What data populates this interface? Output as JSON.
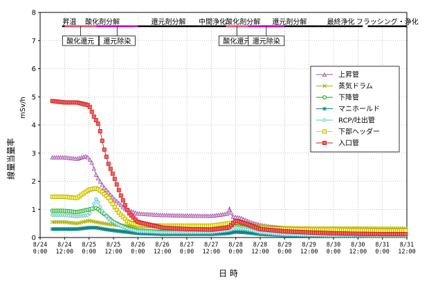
{
  "chart_data": {
    "type": "line",
    "xlabel": "日 時",
    "ylabel": "線量当量率",
    "unit": "mSv/h",
    "ylim": [
      0,
      8
    ],
    "yticks": [
      "0",
      "1",
      "2",
      "3",
      "4",
      "5",
      "6",
      "7",
      "8"
    ],
    "xlim": [
      0,
      15
    ],
    "xticks": [
      {
        "line1": "8/24",
        "line2": "0:00"
      },
      {
        "line1": "8/24",
        "line2": "12:00"
      },
      {
        "line1": "8/25",
        "line2": "0:00"
      },
      {
        "line1": "8/25",
        "line2": "12:00"
      },
      {
        "line1": "8/26",
        "line2": "0:00"
      },
      {
        "line1": "8/26",
        "line2": "12:00"
      },
      {
        "line1": "8/27",
        "line2": "0:00"
      },
      {
        "line1": "8/27",
        "line2": "12:00"
      },
      {
        "line1": "8/28",
        "line2": "0:00"
      },
      {
        "line1": "8/28",
        "line2": "12:00"
      },
      {
        "line1": "8/29",
        "line2": "0:00"
      },
      {
        "line1": "8/29",
        "line2": "12:00"
      },
      {
        "line1": "8/30",
        "line2": "0:00"
      },
      {
        "line1": "8/30",
        "line2": "12:00"
      },
      {
        "line1": "8/31",
        "line2": "0:00"
      },
      {
        "line1": "8/31",
        "line2": "12:00"
      }
    ],
    "phases": [
      {
        "label": "昇温",
        "start": 0.9,
        "end": 1.5,
        "color": "#000000"
      },
      {
        "label": "酸化剤分解",
        "start": 1.5,
        "end": 3.6,
        "color": "#e05070"
      },
      {
        "label": "還元剤分解",
        "start": 4.0,
        "end": 6.5,
        "color": "#000000"
      },
      {
        "label": "中間浄化",
        "start": 6.5,
        "end": 7.6,
        "color": "#000000"
      },
      {
        "label": "酸化剤分解",
        "start": 7.6,
        "end": 9.0,
        "color": "#e05070"
      },
      {
        "label": "還元剤分解",
        "start": 9.0,
        "end": 11.4,
        "color": "#000000"
      },
      {
        "label": "最終浄化",
        "start": 11.4,
        "end": 13.2,
        "color": "#000000"
      },
      {
        "label": "フラッシング・浄化",
        "start": 13.4,
        "end": 15.3,
        "color": "#000000"
      }
    ],
    "sub_phases": [
      {
        "label": "酸化還元",
        "start": 1.0,
        "end": 2.3,
        "bar_color": "#e05070"
      },
      {
        "label": "還元除染",
        "start": 2.3,
        "end": 4.0,
        "bar_color": "#c000c0"
      },
      {
        "label": "酸化還元",
        "start": 7.6,
        "end": 8.5,
        "bar_color": "#e05070"
      },
      {
        "label": "還元除染",
        "start": 8.5,
        "end": 10.0,
        "bar_color": "#c000c0"
      }
    ],
    "legend_position": "right",
    "series": [
      {
        "name": "上昇管",
        "color": "#a050a0",
        "marker": "triangle",
        "points": [
          [
            0.5,
            2.85
          ],
          [
            1,
            2.85
          ],
          [
            1.5,
            2.8
          ],
          [
            1.9,
            2.9
          ],
          [
            2.1,
            2.7
          ],
          [
            2.3,
            2.2
          ],
          [
            2.6,
            1.8
          ],
          [
            3,
            1.4
          ],
          [
            3.5,
            1.0
          ],
          [
            4,
            0.85
          ],
          [
            5,
            0.8
          ],
          [
            6,
            0.78
          ],
          [
            7,
            0.77
          ],
          [
            7.7,
            0.85
          ],
          [
            7.75,
            1.1
          ],
          [
            7.85,
            0.75
          ],
          [
            8.2,
            0.7
          ],
          [
            8.6,
            0.55
          ],
          [
            9,
            0.45
          ],
          [
            10,
            0.3
          ],
          [
            11,
            0.25
          ],
          [
            12,
            0.2
          ],
          [
            13,
            0.15
          ],
          [
            14,
            0.1
          ],
          [
            15,
            0.1
          ]
        ]
      },
      {
        "name": "蒸気ドラム",
        "color": "#b0b000",
        "marker": "x",
        "points": [
          [
            0.5,
            0.55
          ],
          [
            1,
            0.55
          ],
          [
            1.5,
            0.5
          ],
          [
            2,
            0.6
          ],
          [
            2.3,
            0.55
          ],
          [
            2.6,
            0.5
          ],
          [
            3,
            0.45
          ],
          [
            3.5,
            0.42
          ],
          [
            4,
            0.4
          ],
          [
            5,
            0.38
          ],
          [
            6,
            0.38
          ],
          [
            7,
            0.38
          ],
          [
            7.7,
            0.4
          ],
          [
            8,
            0.5
          ],
          [
            8.4,
            0.45
          ],
          [
            9,
            0.4
          ],
          [
            10,
            0.35
          ],
          [
            11,
            0.33
          ],
          [
            12,
            0.33
          ],
          [
            13,
            0.33
          ],
          [
            14,
            0.32
          ],
          [
            15,
            0.32
          ]
        ]
      },
      {
        "name": "下降管",
        "color": "#00a000",
        "marker": "circle",
        "points": [
          [
            0.5,
            0.95
          ],
          [
            1,
            0.95
          ],
          [
            1.5,
            0.9
          ],
          [
            2,
            1.0
          ],
          [
            2.3,
            1.05
          ],
          [
            2.6,
            0.85
          ],
          [
            3,
            0.55
          ],
          [
            3.5,
            0.35
          ],
          [
            4,
            0.25
          ],
          [
            5,
            0.2
          ],
          [
            6,
            0.2
          ],
          [
            7,
            0.2
          ],
          [
            7.7,
            0.3
          ],
          [
            8,
            0.4
          ],
          [
            8.4,
            0.35
          ],
          [
            9,
            0.2
          ],
          [
            10,
            0.12
          ],
          [
            11,
            0.1
          ],
          [
            12,
            0.08
          ],
          [
            13,
            0.08
          ],
          [
            14,
            0.07
          ],
          [
            15,
            0.07
          ]
        ]
      },
      {
        "name": "マニホールド",
        "color": "#008080",
        "marker": "asterisk",
        "points": [
          [
            0.5,
            0.3
          ],
          [
            1,
            0.3
          ],
          [
            1.5,
            0.3
          ],
          [
            2,
            0.35
          ],
          [
            2.3,
            0.35
          ],
          [
            2.6,
            0.3
          ],
          [
            3,
            0.25
          ],
          [
            3.5,
            0.2
          ],
          [
            4,
            0.15
          ],
          [
            5,
            0.12
          ],
          [
            6,
            0.12
          ],
          [
            7,
            0.12
          ],
          [
            7.7,
            0.15
          ],
          [
            8,
            0.2
          ],
          [
            8.4,
            0.18
          ],
          [
            9,
            0.12
          ],
          [
            10,
            0.08
          ],
          [
            11,
            0.07
          ],
          [
            12,
            0.06
          ],
          [
            13,
            0.06
          ],
          [
            14,
            0.05
          ],
          [
            15,
            0.05
          ]
        ]
      },
      {
        "name": "RCP/吐出管",
        "color": "#60c0c0",
        "marker": "diamond",
        "points": [
          [
            0.5,
            0.8
          ],
          [
            1,
            0.8
          ],
          [
            1.5,
            0.75
          ],
          [
            2,
            0.8
          ],
          [
            2.3,
            1.4
          ],
          [
            2.5,
            1.0
          ],
          [
            2.8,
            0.65
          ],
          [
            3.2,
            0.45
          ],
          [
            3.6,
            0.3
          ],
          [
            4,
            0.22
          ],
          [
            5,
            0.18
          ],
          [
            6,
            0.18
          ],
          [
            7,
            0.18
          ],
          [
            7.7,
            0.25
          ],
          [
            8,
            0.35
          ],
          [
            8.4,
            0.3
          ],
          [
            9,
            0.18
          ],
          [
            10,
            0.1
          ],
          [
            11,
            0.08
          ],
          [
            12,
            0.07
          ],
          [
            13,
            0.07
          ],
          [
            14,
            0.06
          ],
          [
            15,
            0.06
          ]
        ]
      },
      {
        "name": "下部ヘッダー",
        "color": "#e0d000",
        "marker": "square",
        "points": [
          [
            0.5,
            1.45
          ],
          [
            1,
            1.45
          ],
          [
            1.5,
            1.4
          ],
          [
            2,
            1.7
          ],
          [
            2.3,
            1.75
          ],
          [
            2.5,
            1.65
          ],
          [
            2.8,
            1.4
          ],
          [
            3.2,
            0.9
          ],
          [
            3.6,
            0.55
          ],
          [
            4,
            0.45
          ],
          [
            5,
            0.42
          ],
          [
            6,
            0.42
          ],
          [
            7,
            0.42
          ],
          [
            7.7,
            0.5
          ],
          [
            8,
            0.55
          ],
          [
            8.4,
            0.5
          ],
          [
            9,
            0.35
          ],
          [
            10,
            0.3
          ],
          [
            11,
            0.28
          ],
          [
            12,
            0.28
          ],
          [
            13,
            0.26
          ],
          [
            14,
            0.25
          ],
          [
            15,
            0.25
          ]
        ]
      },
      {
        "name": "入口管",
        "color": "#c02020",
        "marker": "square-filled",
        "points": [
          [
            0.5,
            4.85
          ],
          [
            1,
            4.8
          ],
          [
            1.5,
            4.8
          ],
          [
            2,
            4.7
          ],
          [
            2.2,
            4.3
          ],
          [
            2.4,
            4.0
          ],
          [
            2.6,
            3.2
          ],
          [
            2.8,
            2.6
          ],
          [
            3,
            2.2
          ],
          [
            3.3,
            1.5
          ],
          [
            3.6,
            0.9
          ],
          [
            4,
            0.55
          ],
          [
            5,
            0.35
          ],
          [
            6,
            0.3
          ],
          [
            7,
            0.28
          ],
          [
            7.7,
            0.35
          ],
          [
            8,
            0.6
          ],
          [
            8.4,
            0.5
          ],
          [
            9,
            0.3
          ],
          [
            10,
            0.22
          ],
          [
            11,
            0.18
          ],
          [
            12,
            0.15
          ],
          [
            13,
            0.13
          ],
          [
            14,
            0.12
          ],
          [
            15,
            0.12
          ]
        ]
      }
    ]
  }
}
